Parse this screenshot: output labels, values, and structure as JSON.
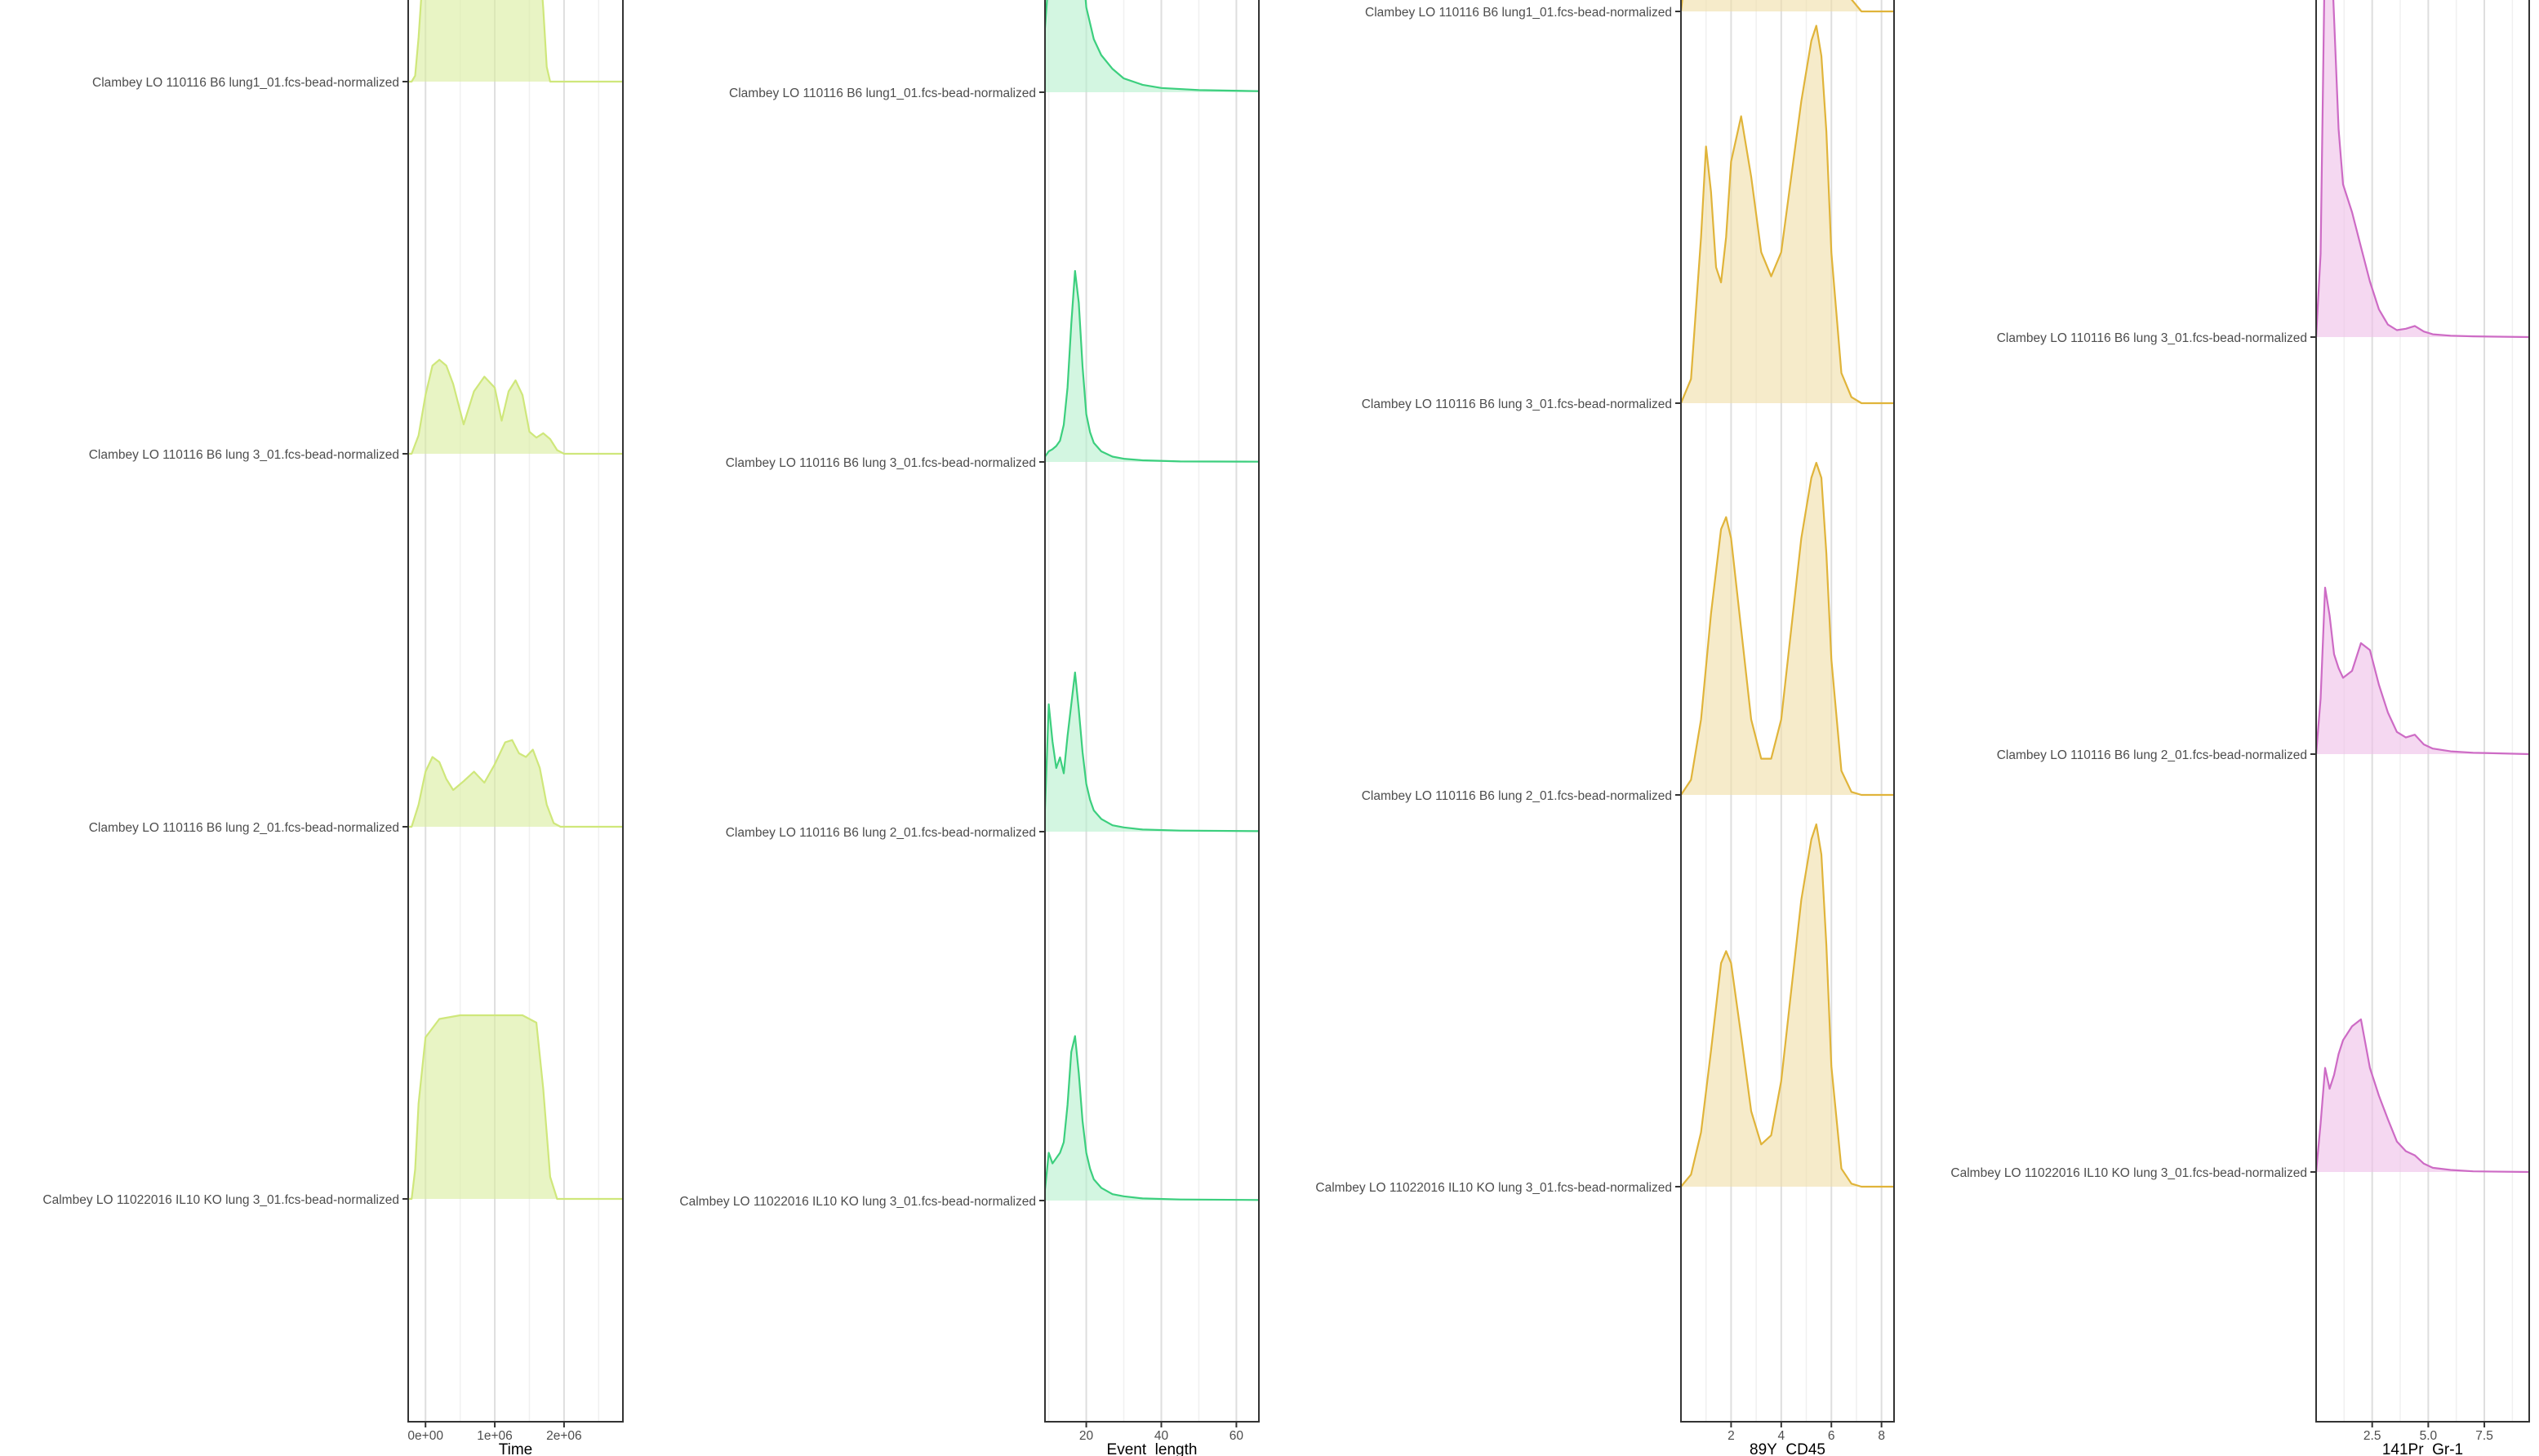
{
  "chart_data": [
    {
      "type": "ridgeline",
      "xlabel": "Time",
      "xlim": [
        -250000,
        2850000
      ],
      "ticks": [
        {
          "v": 0,
          "label": "0e+00"
        },
        {
          "v": 1000000,
          "label": "1e+06"
        },
        {
          "v": 2000000,
          "label": "2e+06"
        }
      ],
      "minor_ticks": [
        500000,
        1500000,
        2500000
      ],
      "color": "#d9ec9c",
      "stroke": "#cfe77b",
      "rows": [
        {
          "label": "Clambey LO 110116 B6 lung1_01.fcs-bead-normalized",
          "x": [
            -200000,
            -150000,
            -100000,
            0,
            100000,
            200000,
            400000,
            600000,
            800000,
            1000000,
            1200000,
            1400000,
            1600000,
            1700000,
            1750000,
            1800000
          ],
          "y": [
            0,
            0.08,
            0.6,
            2.0,
            2.4,
            2.2,
            2.0,
            2.1,
            2.3,
            2.1,
            2.2,
            2.4,
            2.3,
            1.0,
            0.2,
            0
          ]
        },
        {
          "label": "Clambey LO 110116 B6 lung 3_01.fcs-bead-normalized",
          "x": [
            -200000,
            -100000,
            0,
            100000,
            200000,
            300000,
            400000,
            550000,
            700000,
            850000,
            1000000,
            1100000,
            1200000,
            1300000,
            1400000,
            1500000,
            1600000,
            1700000,
            1800000,
            1900000,
            2000000
          ],
          "y": [
            0,
            0.25,
            0.8,
            1.2,
            1.28,
            1.2,
            0.95,
            0.4,
            0.85,
            1.05,
            0.9,
            0.45,
            0.85,
            1.0,
            0.8,
            0.3,
            0.22,
            0.28,
            0.2,
            0.05,
            0
          ]
        },
        {
          "label": "Clambey LO 110116 B6 lung 2_01.fcs-bead-normalized",
          "x": [
            -200000,
            -100000,
            0,
            100000,
            200000,
            300000,
            400000,
            550000,
            700000,
            850000,
            1000000,
            1150000,
            1250000,
            1350000,
            1450000,
            1550000,
            1650000,
            1750000,
            1850000,
            1950000
          ],
          "y": [
            0,
            0.3,
            0.75,
            0.95,
            0.88,
            0.65,
            0.5,
            0.62,
            0.75,
            0.6,
            0.85,
            1.15,
            1.18,
            1.0,
            0.95,
            1.05,
            0.8,
            0.3,
            0.05,
            0
          ]
        },
        {
          "label": "Calmbey LO 11022016 IL10 KO lung 3_01.fcs-bead-normalized",
          "x": [
            -200000,
            -150000,
            -100000,
            0,
            200000,
            500000,
            800000,
            1100000,
            1400000,
            1600000,
            1700000,
            1800000,
            1900000
          ],
          "y": [
            0,
            0.4,
            1.3,
            2.2,
            2.45,
            2.5,
            2.5,
            2.5,
            2.5,
            2.4,
            1.5,
            0.3,
            0
          ]
        }
      ]
    },
    {
      "type": "ridgeline",
      "xlabel": "Event_length",
      "xlim": [
        9,
        66
      ],
      "ticks": [
        {
          "v": 20,
          "label": "20"
        },
        {
          "v": 40,
          "label": "40"
        },
        {
          "v": 60,
          "label": "60"
        }
      ],
      "minor_ticks": [
        10,
        30,
        50
      ],
      "color": "#b6f0cd",
      "stroke": "#3ccf7e",
      "rows": [
        {
          "label": "Clambey LO 110116 B6 lung1_01.fcs-bead-normalized",
          "x": [
            9,
            10,
            11,
            12,
            13,
            14,
            15,
            16,
            17,
            18,
            19,
            20,
            22,
            24,
            27,
            30,
            35,
            40,
            50,
            66
          ],
          "y": [
            0.6,
            1.1,
            1.5,
            1.8,
            2.2,
            2.7,
            3.4,
            4.0,
            3.2,
            1.9,
            1.2,
            0.8,
            0.5,
            0.35,
            0.22,
            0.13,
            0.07,
            0.04,
            0.02,
            0.01
          ]
        },
        {
          "label": "Clambey LO 110116 B6 lung 3_01.fcs-bead-normalized",
          "x": [
            9,
            10,
            11,
            12,
            13,
            14,
            15,
            16,
            17,
            18,
            19,
            20,
            21,
            22,
            24,
            27,
            30,
            35,
            45,
            66
          ],
          "y": [
            0.05,
            0.1,
            0.12,
            0.15,
            0.2,
            0.35,
            0.7,
            1.3,
            1.8,
            1.5,
            0.9,
            0.45,
            0.28,
            0.18,
            0.1,
            0.05,
            0.03,
            0.015,
            0.005,
            0.002
          ]
        },
        {
          "label": "Clambey LO 110116 B6 lung 2_01.fcs-bead-normalized",
          "x": [
            9,
            10,
            11,
            12,
            13,
            14,
            15,
            16,
            17,
            18,
            19,
            20,
            21,
            22,
            24,
            27,
            30,
            35,
            45,
            66
          ],
          "y": [
            0.2,
            1.2,
            0.85,
            0.6,
            0.7,
            0.55,
            0.9,
            1.2,
            1.5,
            1.15,
            0.75,
            0.45,
            0.3,
            0.2,
            0.12,
            0.06,
            0.04,
            0.02,
            0.01,
            0.005
          ]
        },
        {
          "label": "Calmbey LO 11022016 IL10 KO lung 3_01.fcs-bead-normalized",
          "x": [
            9,
            10,
            11,
            12,
            13,
            14,
            15,
            16,
            17,
            18,
            19,
            20,
            21,
            22,
            24,
            27,
            30,
            35,
            45,
            66
          ],
          "y": [
            0.1,
            0.45,
            0.35,
            0.4,
            0.45,
            0.55,
            0.9,
            1.4,
            1.55,
            1.2,
            0.75,
            0.45,
            0.3,
            0.2,
            0.12,
            0.06,
            0.04,
            0.02,
            0.01,
            0.005
          ]
        }
      ]
    },
    {
      "type": "ridgeline",
      "xlabel": "89Y_CD45",
      "xlim": [
        0,
        8.5
      ],
      "ticks": [
        {
          "v": 2,
          "label": "2"
        },
        {
          "v": 4,
          "label": "4"
        },
        {
          "v": 6,
          "label": "6"
        },
        {
          "v": 8,
          "label": "8"
        }
      ],
      "minor_ticks": [
        1,
        3,
        5,
        7
      ],
      "color": "#f0dea6",
      "stroke": "#e0b43a",
      "rows": [
        {
          "label": "Clambey LO 110116 B6 lung1_01.fcs-bead-normalized",
          "x": [
            0,
            0.4,
            0.8,
            1.0,
            1.2,
            1.4,
            1.6,
            1.8,
            2.0,
            2.4,
            2.8,
            3.2,
            3.6,
            4.0,
            4.4,
            4.8,
            5.2,
            5.6,
            6.0,
            6.4,
            6.8,
            7.2
          ],
          "y": [
            0,
            0.3,
            1.5,
            2.05,
            1.6,
            1.0,
            0.85,
            0.9,
            1.2,
            1.55,
            1.6,
            1.35,
            1.05,
            1.0,
            1.2,
            1.45,
            1.65,
            1.35,
            0.7,
            0.2,
            0.04,
            0
          ]
        },
        {
          "label": "Clambey LO 110116 B6 lung 3_01.fcs-bead-normalized",
          "x": [
            0,
            0.4,
            0.8,
            1.0,
            1.2,
            1.4,
            1.6,
            1.8,
            2.0,
            2.4,
            2.8,
            3.2,
            3.6,
            4.0,
            4.4,
            4.8,
            5.2,
            5.4,
            5.6,
            5.8,
            6.0,
            6.4,
            6.8,
            7.2
          ],
          "y": [
            0,
            0.08,
            0.55,
            0.85,
            0.7,
            0.45,
            0.4,
            0.55,
            0.8,
            0.95,
            0.75,
            0.5,
            0.42,
            0.5,
            0.75,
            1.0,
            1.2,
            1.25,
            1.15,
            0.9,
            0.5,
            0.1,
            0.02,
            0
          ]
        },
        {
          "label": "Clambey LO 110116 B6 lung 2_01.fcs-bead-normalized",
          "x": [
            0,
            0.4,
            0.8,
            1.2,
            1.6,
            1.8,
            2.0,
            2.4,
            2.8,
            3.2,
            3.6,
            4.0,
            4.4,
            4.8,
            5.2,
            5.4,
            5.6,
            5.8,
            6.0,
            6.4,
            6.8,
            7.2
          ],
          "y": [
            0,
            0.05,
            0.25,
            0.6,
            0.88,
            0.92,
            0.85,
            0.55,
            0.25,
            0.12,
            0.12,
            0.25,
            0.55,
            0.85,
            1.05,
            1.1,
            1.05,
            0.8,
            0.45,
            0.08,
            0.01,
            0
          ]
        },
        {
          "label": "Calmbey LO 11022016 IL10 KO lung 3_01.fcs-bead-normalized",
          "x": [
            0,
            0.4,
            0.8,
            1.2,
            1.6,
            1.8,
            2.0,
            2.4,
            2.8,
            3.2,
            3.6,
            4.0,
            4.4,
            4.8,
            5.2,
            5.4,
            5.6,
            5.8,
            6.0,
            6.4,
            6.8,
            7.2
          ],
          "y": [
            0,
            0.04,
            0.18,
            0.45,
            0.74,
            0.78,
            0.74,
            0.5,
            0.25,
            0.14,
            0.17,
            0.35,
            0.65,
            0.95,
            1.15,
            1.2,
            1.1,
            0.8,
            0.4,
            0.06,
            0.01,
            0
          ]
        }
      ]
    },
    {
      "type": "ridgeline",
      "xlabel": "141Pr_Gr-1",
      "xlim": [
        0,
        9.5
      ],
      "ticks": [
        {
          "v": 2.5,
          "label": "2.5"
        },
        {
          "v": 5,
          "label": "5.0"
        },
        {
          "v": 7.5,
          "label": "7.5"
        }
      ],
      "minor_ticks": [
        1.25,
        3.75,
        6.25,
        8.75
      ],
      "color": "#eebee8",
      "stroke": "#cd6bc5",
      "rows": [
        {
          "label": "Clambey LO 110116 B6 lung 3_01.fcs-bead-normalized",
          "x": [
            0,
            0.2,
            0.4,
            0.6,
            0.8,
            1.0,
            1.2,
            1.6,
            2.0,
            2.4,
            2.8,
            3.2,
            3.6,
            4.0,
            4.4,
            4.8,
            5.2,
            6.0,
            7.0,
            9.5
          ],
          "y": [
            0,
            0.6,
            2.9,
            3.1,
            2.3,
            1.5,
            1.1,
            0.9,
            0.65,
            0.4,
            0.2,
            0.09,
            0.05,
            0.06,
            0.08,
            0.04,
            0.02,
            0.01,
            0.005,
            0
          ]
        },
        {
          "label": "Clambey LO 110116 B6 lung 2_01.fcs-bead-normalized",
          "x": [
            0,
            0.2,
            0.4,
            0.6,
            0.8,
            1.0,
            1.2,
            1.6,
            2.0,
            2.4,
            2.8,
            3.2,
            3.6,
            4.0,
            4.4,
            4.8,
            5.2,
            6.0,
            7.0,
            9.5
          ],
          "y": [
            0,
            0.4,
            1.2,
            1.0,
            0.72,
            0.62,
            0.55,
            0.6,
            0.8,
            0.75,
            0.5,
            0.3,
            0.16,
            0.12,
            0.14,
            0.07,
            0.04,
            0.02,
            0.01,
            0
          ]
        },
        {
          "label": "Calmbey LO 11022016 IL10 KO lung 3_01.fcs-bead-normalized",
          "x": [
            0,
            0.2,
            0.4,
            0.6,
            0.8,
            1.0,
            1.2,
            1.6,
            2.0,
            2.4,
            2.8,
            3.2,
            3.6,
            4.0,
            4.4,
            4.8,
            5.2,
            6.0,
            7.0,
            9.5
          ],
          "y": [
            0,
            0.35,
            0.75,
            0.6,
            0.7,
            0.85,
            0.95,
            1.05,
            1.1,
            0.75,
            0.55,
            0.38,
            0.22,
            0.15,
            0.12,
            0.06,
            0.03,
            0.015,
            0.005,
            0
          ]
        }
      ]
    }
  ]
}
